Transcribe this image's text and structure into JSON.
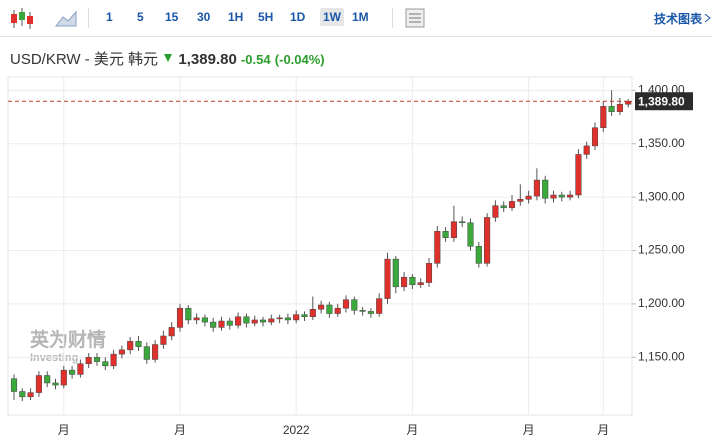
{
  "toolbar": {
    "intervals": [
      "1",
      "5",
      "15",
      "30",
      "1H",
      "5H",
      "1D",
      "1W",
      "1M"
    ],
    "active": "1W",
    "link": "技术图表"
  },
  "header": {
    "title": "USD/KRW - 美元 韩元",
    "change": "-0.54",
    "change_pct": "(-0.04%)"
  },
  "watermark": {
    "cn": "英为财情",
    "en": "Investing"
  },
  "chart_data": {
    "type": "candlestick",
    "up_color": "#e0302b",
    "down_color": "#3aa83a",
    "ylim": [
      1096,
      1405
    ],
    "yticks": [
      {
        "value": 1150,
        "label": "1,150.00"
      },
      {
        "value": 1200,
        "label": "1,200.00"
      },
      {
        "value": 1250,
        "label": "1,250.00"
      },
      {
        "value": 1300,
        "label": "1,300.00"
      },
      {
        "value": 1350,
        "label": "1,350.00"
      },
      {
        "value": 1400,
        "label": "1,400.00"
      }
    ],
    "grid": true,
    "last_price": {
      "value": 1389.8,
      "label": "1,389.80"
    },
    "categories": [
      null,
      null,
      null,
      null,
      null,
      null,
      "月",
      null,
      null,
      null,
      null,
      null,
      null,
      null,
      null,
      null,
      null,
      null,
      null,
      null,
      "月",
      null,
      null,
      null,
      null,
      null,
      null,
      null,
      null,
      null,
      null,
      null,
      null,
      null,
      "2022",
      null,
      null,
      null,
      null,
      null,
      null,
      null,
      null,
      null,
      null,
      null,
      null,
      null,
      "月",
      null,
      null,
      null,
      null,
      null,
      null,
      null,
      null,
      null,
      null,
      null,
      null,
      null,
      "月",
      null,
      null,
      null,
      null,
      null,
      null,
      null,
      null,
      "月",
      null,
      null,
      null
    ],
    "open": [
      1130,
      1118,
      1113,
      1117,
      1133,
      1126,
      1124,
      1138,
      1134,
      1144,
      1150,
      1146,
      1142,
      1153,
      1157,
      1165,
      1160,
      1148,
      1162,
      1170,
      1178,
      1196,
      1185,
      1187,
      1183,
      1178,
      1184,
      1180,
      1188,
      1182,
      1185,
      1183,
      1186,
      1187,
      1185,
      1190,
      1188,
      1195,
      1199,
      1191,
      1196,
      1204,
      1194,
      1193,
      1191,
      1205,
      1242,
      1216,
      1225,
      1218,
      1220,
      1238,
      1268,
      1262,
      1277,
      1276,
      1254,
      1238,
      1281,
      1292,
      1290,
      1296,
      1298,
      1301,
      1316,
      1299,
      1302,
      1300,
      1302,
      1340,
      1348,
      1365,
      1385,
      1380,
      1387
    ],
    "high": [
      1134,
      1121,
      1121,
      1137,
      1137,
      1130,
      1142,
      1142,
      1148,
      1154,
      1154,
      1150,
      1157,
      1161,
      1169,
      1170,
      1164,
      1166,
      1175,
      1183,
      1200,
      1199,
      1191,
      1190,
      1187,
      1188,
      1187,
      1192,
      1191,
      1189,
      1188,
      1190,
      1190,
      1191,
      1194,
      1193,
      1207,
      1203,
      1202,
      1200,
      1208,
      1207,
      1197,
      1196,
      1210,
      1248,
      1245,
      1230,
      1228,
      1224,
      1243,
      1273,
      1272,
      1292,
      1282,
      1280,
      1258,
      1285,
      1297,
      1296,
      1302,
      1312,
      1306,
      1327,
      1320,
      1306,
      1305,
      1306,
      1345,
      1352,
      1370,
      1390,
      1400,
      1393,
      1392
    ],
    "low": [
      1110,
      1109,
      1110,
      1113,
      1122,
      1120,
      1121,
      1130,
      1131,
      1140,
      1142,
      1138,
      1139,
      1149,
      1153,
      1156,
      1144,
      1145,
      1158,
      1166,
      1174,
      1181,
      1181,
      1179,
      1174,
      1175,
      1176,
      1177,
      1178,
      1179,
      1179,
      1180,
      1182,
      1181,
      1182,
      1184,
      1185,
      1191,
      1187,
      1188,
      1192,
      1190,
      1189,
      1187,
      1188,
      1200,
      1210,
      1212,
      1214,
      1215,
      1216,
      1234,
      1258,
      1258,
      1272,
      1250,
      1234,
      1235,
      1277,
      1286,
      1287,
      1292,
      1294,
      1297,
      1294,
      1295,
      1296,
      1297,
      1299,
      1336,
      1344,
      1361,
      1376,
      1377,
      1384
    ],
    "close": [
      1118,
      1113,
      1117,
      1133,
      1126,
      1124,
      1138,
      1134,
      1144,
      1150,
      1146,
      1142,
      1153,
      1157,
      1165,
      1160,
      1148,
      1162,
      1170,
      1178,
      1196,
      1185,
      1187,
      1183,
      1178,
      1184,
      1180,
      1188,
      1182,
      1185,
      1183,
      1186,
      1187,
      1185,
      1190,
      1188,
      1195,
      1199,
      1191,
      1196,
      1204,
      1194,
      1193,
      1191,
      1205,
      1242,
      1216,
      1225,
      1218,
      1220,
      1238,
      1268,
      1262,
      1277,
      1276,
      1254,
      1238,
      1281,
      1292,
      1290,
      1296,
      1298,
      1301,
      1316,
      1299,
      1302,
      1300,
      1302,
      1340,
      1348,
      1365,
      1385,
      1380,
      1387,
      1389.8
    ]
  }
}
